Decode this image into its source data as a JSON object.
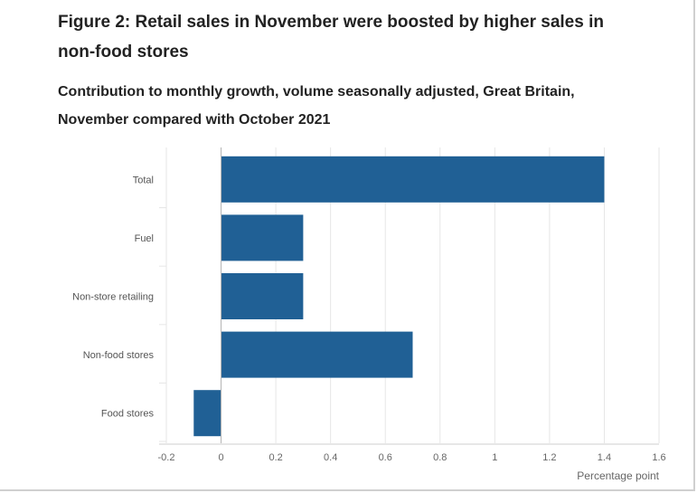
{
  "title": "Figure 2: Retail sales in November were boosted by higher sales in non-food stores",
  "subtitle": "Contribution to monthly growth, volume seasonally adjusted, Great Britain, November compared with October 2021",
  "chart_data": {
    "type": "bar",
    "orientation": "horizontal",
    "title": "Figure 2: Retail sales in November were boosted by higher sales in non-food stores",
    "subtitle": "Contribution to monthly growth, volume seasonally adjusted, Great Britain, November compared with October 2021",
    "categories": [
      "Total",
      "Fuel",
      "Non-store retailing",
      "Non-food stores",
      "Food stores"
    ],
    "values": [
      1.4,
      0.3,
      0.3,
      0.7,
      -0.1
    ],
    "xlabel": "Percentage point",
    "ylabel": "",
    "xlim": [
      -0.2,
      1.6
    ],
    "xticks": [
      "-0.2",
      "0",
      "0.2",
      "0.4",
      "0.6",
      "0.8",
      "1",
      "1.2",
      "1.4",
      "1.6"
    ],
    "grid": true,
    "bar_color": "#206095",
    "grid_color": "#e6e6e6",
    "zero_line_color": "#b3b3b3"
  }
}
